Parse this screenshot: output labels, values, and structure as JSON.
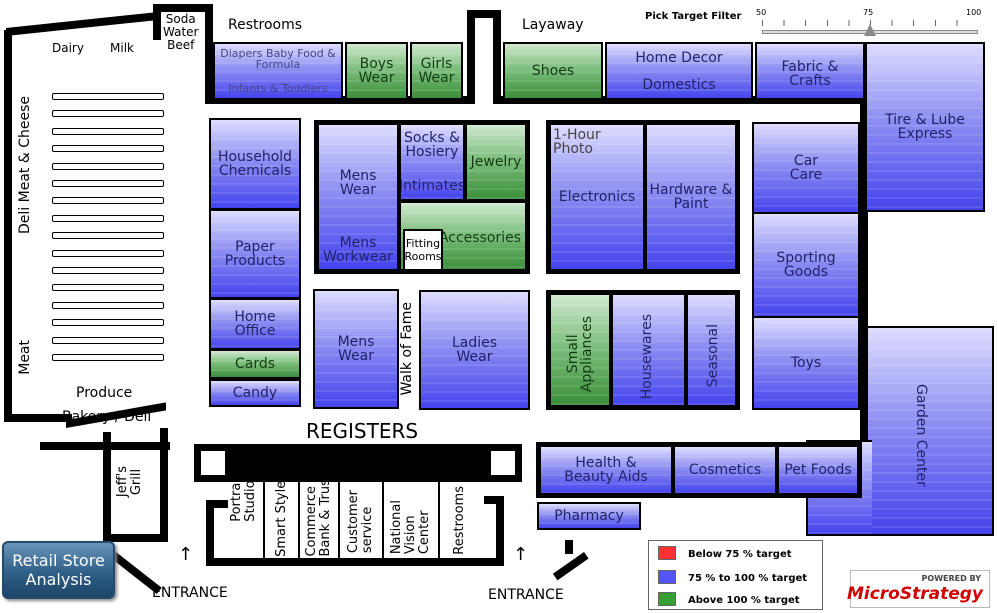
{
  "filter": {
    "title": "Pick Target Filter",
    "ticks": [
      "50",
      "75",
      "100"
    ],
    "value_percent": 75,
    "min": 50,
    "max": 100
  },
  "labels": {
    "restrooms_top": "Restrooms",
    "layaway": "Layaway",
    "dairy": "Dairy",
    "milk": "Milk",
    "soda_water_beef": "Soda\nWater\nBeef",
    "deli_meat_cheese": "Deli Meat & Cheese",
    "meat": "Meat",
    "produce": "Produce",
    "bakery_deli": "Bakery / Deli",
    "jeffs_grill": "Jeff's\nGrill",
    "registers": "REGISTERS",
    "walk_of_fame": "Walk of Fame",
    "entrance_left": "ENTRANCE",
    "entrance_right": "ENTRANCE"
  },
  "departments": {
    "diapers": {
      "line1": "Diapers Baby Food &",
      "line2": "Formula",
      "line3": "Infants & Toddlers"
    },
    "boys_wear": "Boys\nWear",
    "girls_wear": "Girls\nWear",
    "shoes": "Shoes",
    "home_decor": "Home Decor",
    "domestics": "Domestics",
    "fabric_crafts": "Fabric &\nCrafts",
    "tire_lube": "Tire & Lube\nExpress",
    "household_chemicals": "Household\nChemicals",
    "paper_products": "Paper\nProducts",
    "home_office": "Home\nOffice",
    "cards": "Cards",
    "candy": "Candy",
    "mens_wear_top": "Mens\nWear",
    "mens_workwear": "Mens\nWorkwear",
    "socks_hosiery": "Socks &\nHosiery",
    "intimates": "Intimates",
    "jewelry": "Jewelry",
    "accessories": "Accessories",
    "fitting_rooms": "Fitting\nRooms",
    "one_hour_photo": "1-Hour\nPhoto",
    "electronics": "Electronics",
    "hardware_paint": "Hardware &\nPaint",
    "car_care": "Car\nCare",
    "sporting_goods": "Sporting\nGoods",
    "toys": "Toys",
    "garden_center": "Garden Center",
    "mens_wear_bottom": "Mens\nWear",
    "ladies_wear": "Ladies\nWear",
    "small_appliances": "Small\nAppliances",
    "housewares": "Housewares",
    "seasonal": "Seasonal",
    "health_beauty": "Health &\nBeauty Aids",
    "cosmetics": "Cosmetics",
    "pet_foods": "Pet Foods",
    "pharmacy": "Pharmacy"
  },
  "registers_row": [
    "Portrait\nStudio",
    "Smart Styles",
    "Commerce\nBank & Trust",
    "Customer\nservice",
    "National\nVision\nCenter",
    "Restrooms"
  ],
  "legend": [
    {
      "label": "Below 75 % target",
      "color": "#ff3333"
    },
    {
      "label": "75 % to 100 % target",
      "color": "#5555ff"
    },
    {
      "label": "Above 100 % target",
      "color": "#33a033"
    }
  ],
  "app_button": "Retail Store\nAnalysis",
  "brand": {
    "powered_by": "POWERED BY",
    "name": "MicroStrategy"
  },
  "colors": {
    "below": "#ff3333",
    "within": "#5555ff",
    "above": "#33a033"
  }
}
